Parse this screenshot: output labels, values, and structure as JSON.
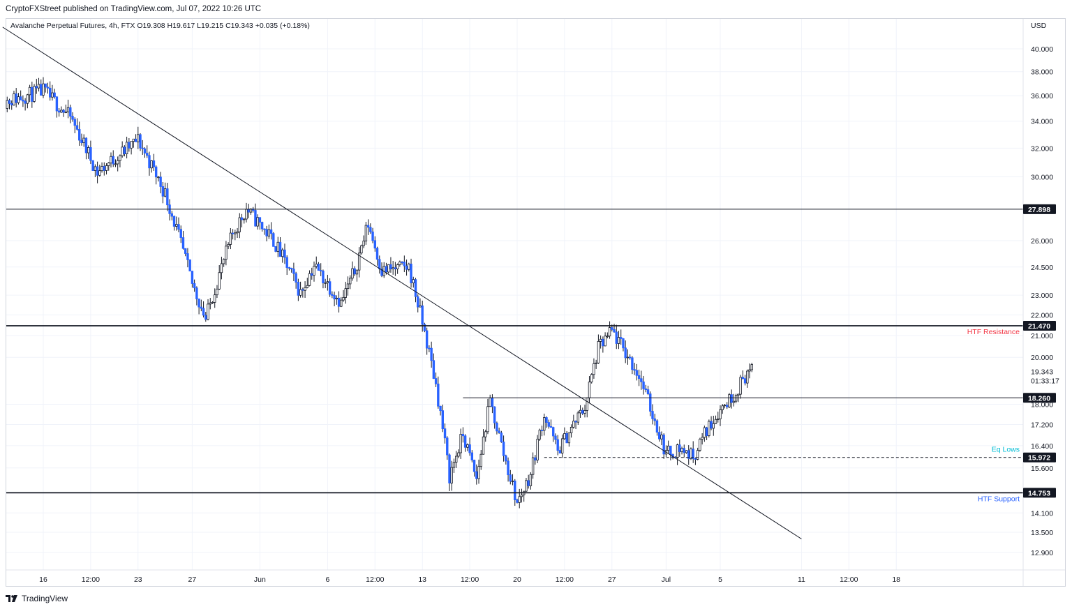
{
  "publish_line": "CryptoFXStreet published on TradingView.com, Jul 07, 2022 10:26 UTC",
  "legend": {
    "symbol": "Avalanche Perpetual Futures, 4h, FTX",
    "open": "O19.308",
    "high": "H19.617",
    "low": "L19.215",
    "close": "C19.343",
    "change": "+0.035 (+0.18%)"
  },
  "footer": {
    "brand": "TradingView"
  },
  "colors": {
    "candle": "#2962ff",
    "wick": "#131722",
    "grid": "#f0f3fa",
    "level_line": "#131722",
    "tag_bg": "#131722",
    "resistance_text": "#f23645",
    "support_text": "#2962ff",
    "eq_lows_text": "#00bcd4"
  },
  "chart_data": {
    "type": "candlestick",
    "title": "Avalanche Perpetual Futures, 4h, FTX",
    "currency": "USD",
    "price_scale": "logarithmic",
    "grid": true,
    "y_ticks": [
      "40.000",
      "38.000",
      "36.000",
      "34.000",
      "32.000",
      "30.000",
      "26.000",
      "24.500",
      "23.000",
      "22.000",
      "21.000",
      "20.000",
      "18.000",
      "17.200",
      "16.400",
      "15.600",
      "14.100",
      "13.500",
      "12.900"
    ],
    "x_ticks": [
      {
        "label": "16",
        "date": "2022-05-16"
      },
      {
        "label": "12:00",
        "date": "2022-05-19T12:00"
      },
      {
        "label": "23",
        "date": "2022-05-23"
      },
      {
        "label": "27",
        "date": "2022-05-27"
      },
      {
        "label": "Jun",
        "date": "2022-06-01"
      },
      {
        "label": "6",
        "date": "2022-06-06"
      },
      {
        "label": "12:00",
        "date": "2022-06-09T12:00"
      },
      {
        "label": "13",
        "date": "2022-06-13"
      },
      {
        "label": "12:00",
        "date": "2022-06-16T12:00"
      },
      {
        "label": "20",
        "date": "2022-06-20"
      },
      {
        "label": "12:00",
        "date": "2022-06-23T12:00"
      },
      {
        "label": "27",
        "date": "2022-06-27"
      },
      {
        "label": "Jul",
        "date": "2022-07-01"
      },
      {
        "label": "5",
        "date": "2022-07-05"
      },
      {
        "label": "11",
        "date": "2022-07-11"
      },
      {
        "label": "12:00",
        "date": "2022-07-14T12:00"
      },
      {
        "label": "18",
        "date": "2022-07-18"
      }
    ],
    "last_price": {
      "value": 19.343,
      "label": "19.343",
      "countdown": "01:33:17"
    },
    "levels": [
      {
        "value": 27.898,
        "label": "27.898",
        "note": "",
        "start_date": "2022-05-13",
        "style": "solid"
      },
      {
        "value": 21.47,
        "label": "21.470",
        "note": "HTF Resistance",
        "start_date": "2022-05-13",
        "style": "solid-bold"
      },
      {
        "value": 18.26,
        "label": "18.260",
        "note": "",
        "start_date": "2022-06-16",
        "style": "solid"
      },
      {
        "value": 15.972,
        "label": "15.972",
        "note": "Eq Lows",
        "start_date": "2022-06-22",
        "style": "dashed"
      },
      {
        "value": 14.753,
        "label": "14.753",
        "note": "HTF Support",
        "start_date": "2022-05-13",
        "style": "solid-bold"
      }
    ],
    "trendline": {
      "start": {
        "date": "2022-05-13",
        "value": 42.0
      },
      "end": {
        "date": "2022-07-11",
        "value": 13.3
      }
    },
    "anchors": [
      {
        "date": "2022-05-13",
        "value": 35.5
      },
      {
        "date": "2022-05-16",
        "value": 36.4
      },
      {
        "date": "2022-05-18",
        "value": 34.3
      },
      {
        "date": "2022-05-20",
        "value": 30.3
      },
      {
        "date": "2022-05-23",
        "value": 32.6
      },
      {
        "date": "2022-05-25",
        "value": 28.9
      },
      {
        "date": "2022-05-27",
        "value": 23.6
      },
      {
        "date": "2022-05-28",
        "value": 21.8
      },
      {
        "date": "2022-05-30",
        "value": 26.4
      },
      {
        "date": "2022-05-31",
        "value": 27.9
      },
      {
        "date": "2022-06-02",
        "value": 26.0
      },
      {
        "date": "2022-06-04",
        "value": 23.1
      },
      {
        "date": "2022-06-05",
        "value": 24.6
      },
      {
        "date": "2022-06-07",
        "value": 22.6
      },
      {
        "date": "2022-06-08",
        "value": 24.3
      },
      {
        "date": "2022-06-09",
        "value": 27.0
      },
      {
        "date": "2022-06-10",
        "value": 24.3
      },
      {
        "date": "2022-06-12",
        "value": 24.5
      },
      {
        "date": "2022-06-13",
        "value": 21.6
      },
      {
        "date": "2022-06-14",
        "value": 18.8
      },
      {
        "date": "2022-06-15",
        "value": 15.3
      },
      {
        "date": "2022-06-16",
        "value": 16.8
      },
      {
        "date": "2022-06-17",
        "value": 15.2
      },
      {
        "date": "2022-06-18",
        "value": 18.1
      },
      {
        "date": "2022-06-19",
        "value": 16.1
      },
      {
        "date": "2022-06-20",
        "value": 14.4
      },
      {
        "date": "2022-06-21",
        "value": 15.4
      },
      {
        "date": "2022-06-22",
        "value": 17.6
      },
      {
        "date": "2022-06-23",
        "value": 16.2
      },
      {
        "date": "2022-06-25",
        "value": 17.9
      },
      {
        "date": "2022-06-26",
        "value": 20.4
      },
      {
        "date": "2022-06-27",
        "value": 21.2
      },
      {
        "date": "2022-06-28",
        "value": 20.2
      },
      {
        "date": "2022-06-29",
        "value": 19.2
      },
      {
        "date": "2022-06-30",
        "value": 17.6
      },
      {
        "date": "2022-07-01",
        "value": 16.1
      },
      {
        "date": "2022-07-02",
        "value": 16.3
      },
      {
        "date": "2022-07-03",
        "value": 16.0
      },
      {
        "date": "2022-07-04",
        "value": 17.0
      },
      {
        "date": "2022-07-05",
        "value": 17.8
      },
      {
        "date": "2022-07-06",
        "value": 18.4
      },
      {
        "date": "2022-07-07",
        "value": 19.34
      }
    ]
  }
}
